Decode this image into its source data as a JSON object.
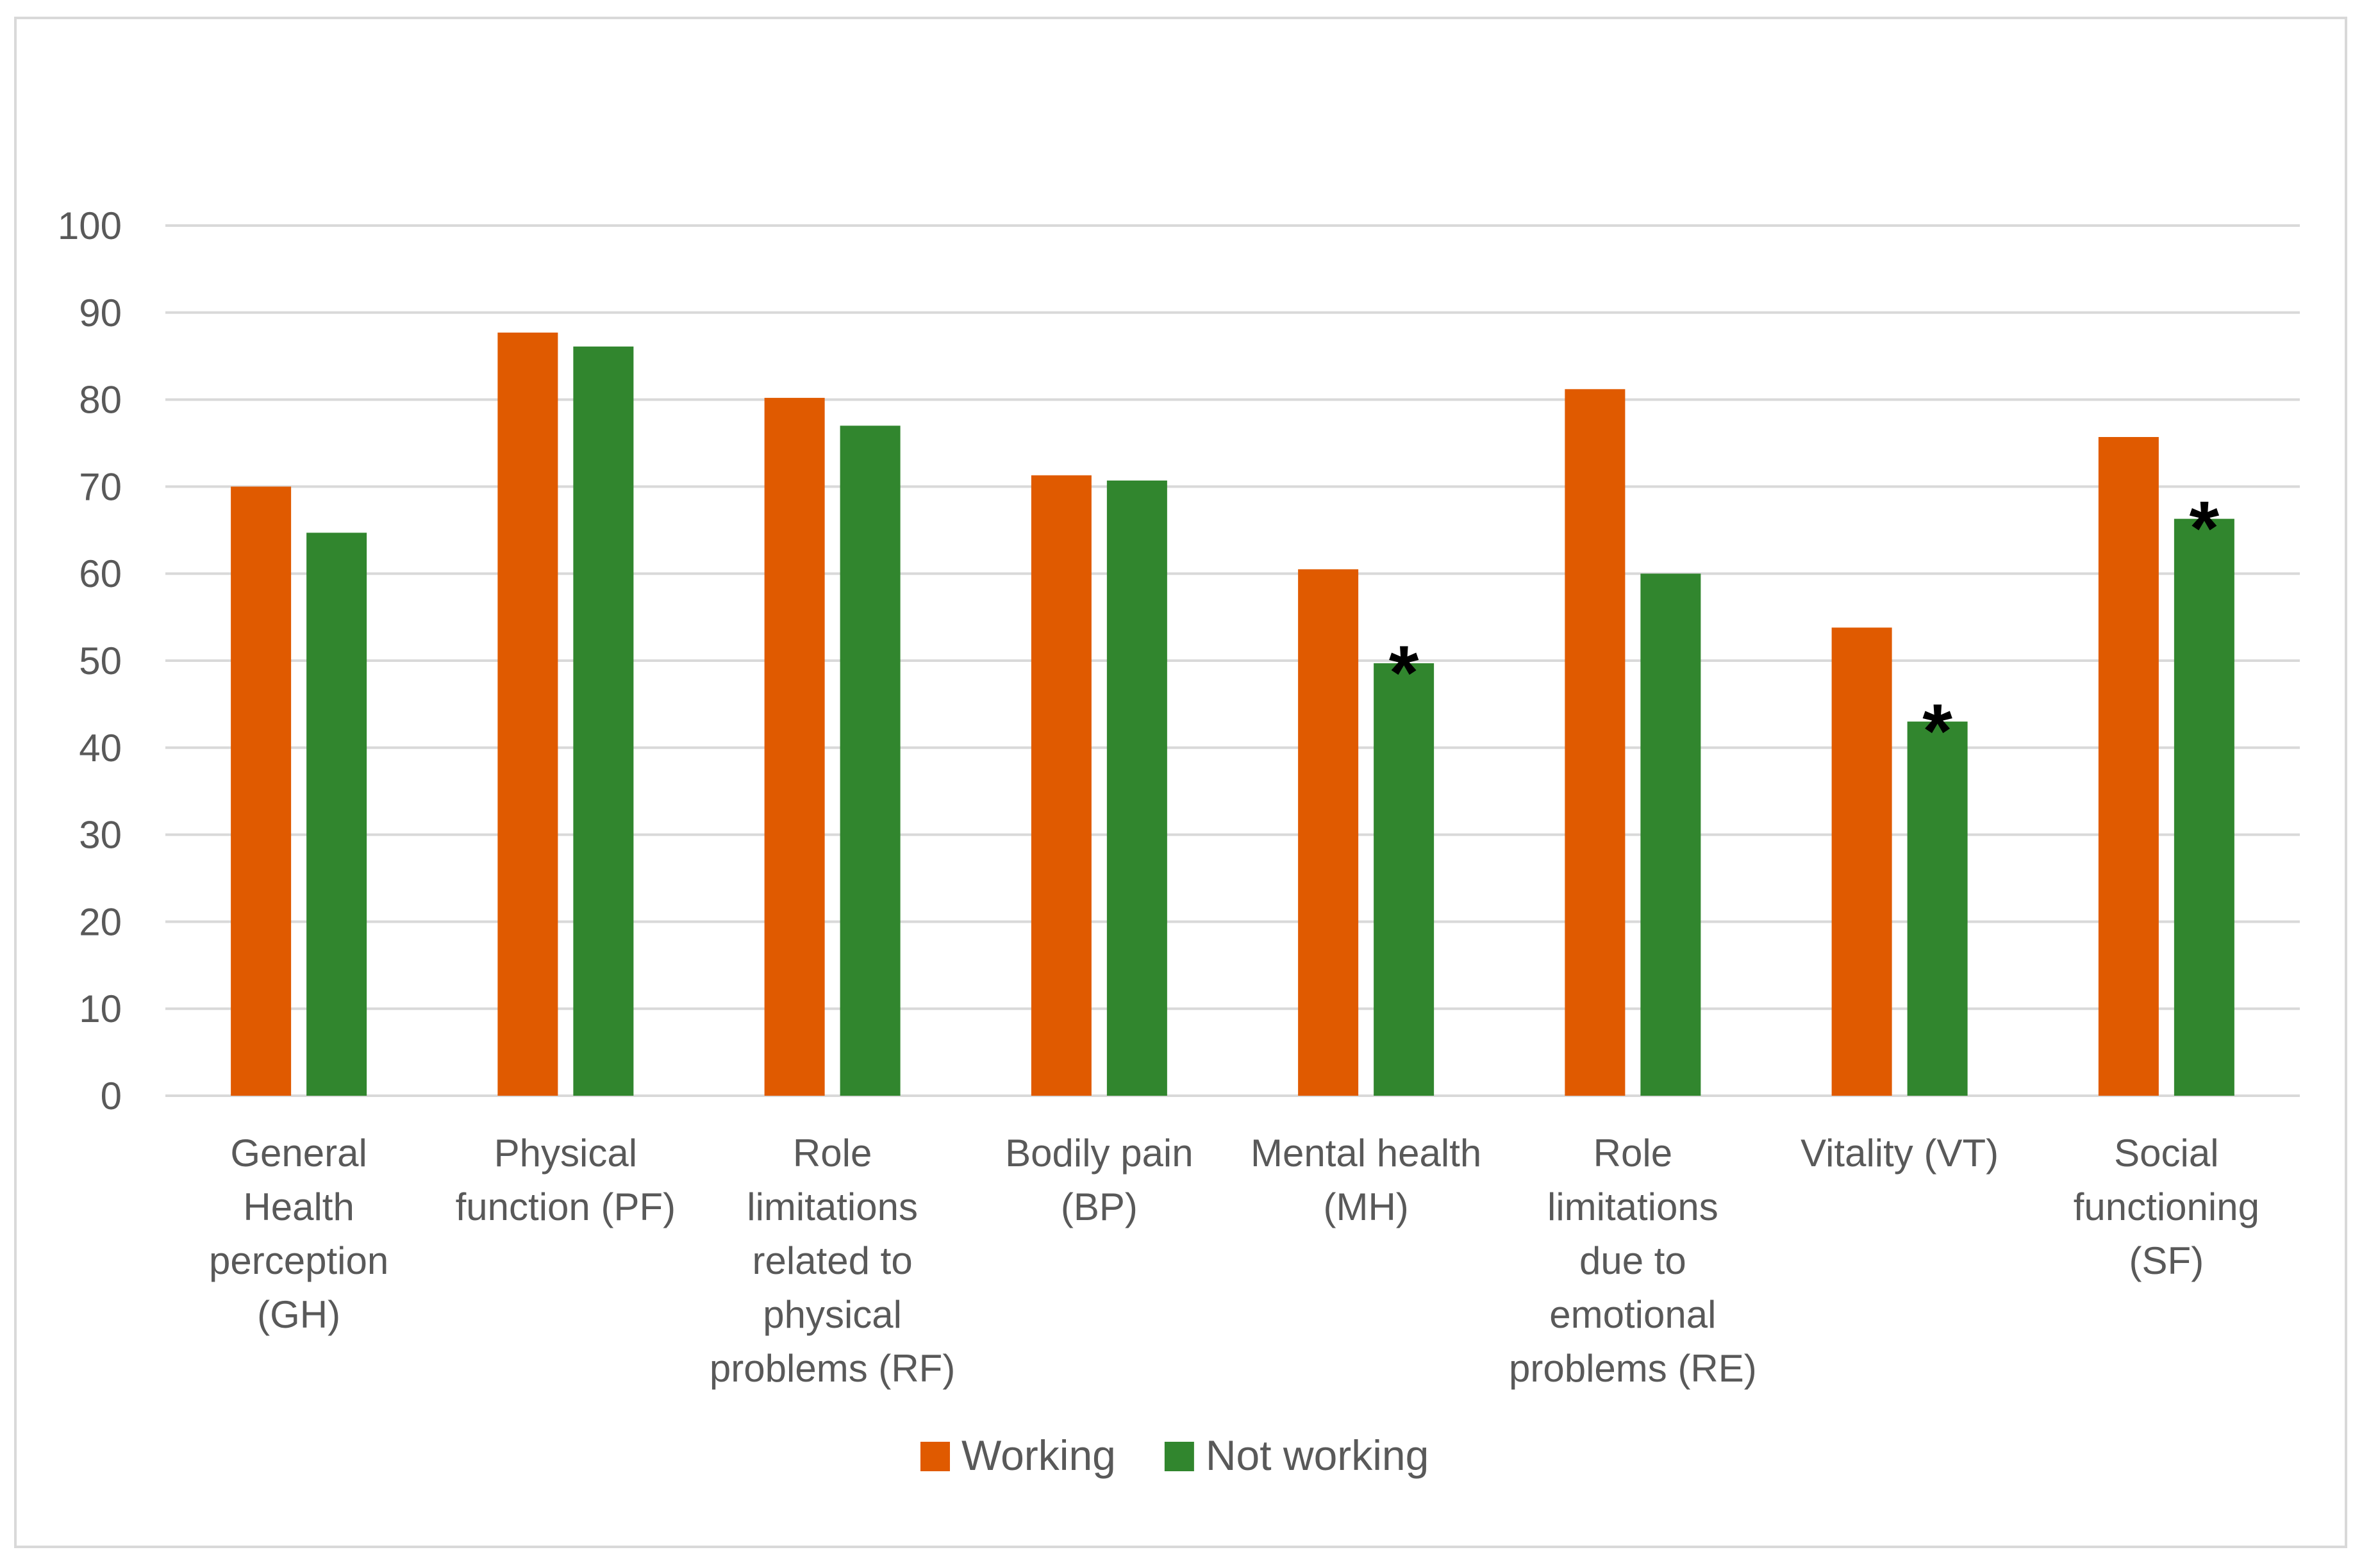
{
  "chart_data": {
    "type": "bar",
    "title": "",
    "xlabel": "",
    "ylabel": "",
    "ylim": [
      0,
      100
    ],
    "yticks": [
      0,
      10,
      20,
      30,
      40,
      50,
      60,
      70,
      80,
      90,
      100
    ],
    "grid": true,
    "legend_position": "bottom",
    "categories": [
      [
        "General",
        "Health",
        "perception",
        "(GH)"
      ],
      [
        "Physical",
        "function (PF)"
      ],
      [
        "Role",
        "limitations",
        "related to",
        "physical",
        "problems (RF)"
      ],
      [
        "Bodily pain",
        "(BP)"
      ],
      [
        "Mental health",
        "(MH)"
      ],
      [
        "Role",
        "limitations",
        "due to",
        "emotional",
        "problems (RE)"
      ],
      [
        "Vitality (VT)"
      ],
      [
        "Social",
        "functioning",
        "(SF)"
      ]
    ],
    "series": [
      {
        "name": "Working",
        "color": "#e05a00",
        "values": [
          70,
          87.7,
          80.2,
          71.3,
          60.5,
          81.2,
          53.8,
          75.7
        ]
      },
      {
        "name": "Not working",
        "color": "#31862e",
        "values": [
          64.7,
          86.1,
          77.0,
          70.7,
          49.7,
          60.0,
          43.0,
          66.3
        ]
      }
    ],
    "significance_marker": "*",
    "significant": [
      {
        "category_index": 4,
        "series_index": 1
      },
      {
        "category_index": 6,
        "series_index": 1
      },
      {
        "category_index": 7,
        "series_index": 1
      }
    ]
  }
}
